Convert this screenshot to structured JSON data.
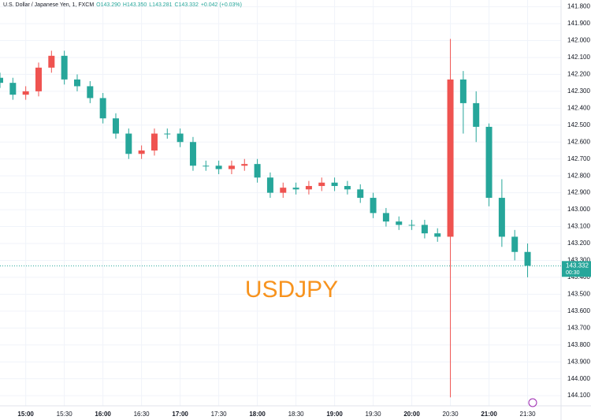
{
  "chart_data": {
    "type": "candlestick",
    "header": [
      "U.S. Dollar / Japanese Yen, 1, FXCM",
      "O143.290",
      "H143.350",
      "L143.281",
      "C143.332",
      "+0.042 (+0.03%)"
    ],
    "watermark": "USDJPY",
    "inverted": true,
    "grid": true,
    "up_color": "#26a69a",
    "down_color": "#ef5350",
    "x": [
      "14:40",
      "14:50",
      "15:00",
      "15:10",
      "15:20",
      "15:30",
      "15:40",
      "15:50",
      "16:00",
      "16:10",
      "16:20",
      "16:30",
      "16:40",
      "16:50",
      "17:00",
      "17:10",
      "17:20",
      "17:30",
      "17:40",
      "17:50",
      "18:00",
      "18:10",
      "18:20",
      "18:30",
      "18:40",
      "18:50",
      "19:00",
      "19:10",
      "19:20",
      "19:30",
      "19:40",
      "19:50",
      "20:00",
      "20:10",
      "20:20",
      "20:30",
      "20:40",
      "20:50",
      "21:00",
      "21:10",
      "21:20",
      "21:30"
    ],
    "open": [
      142.22,
      142.25,
      142.32,
      142.3,
      142.16,
      142.09,
      142.23,
      142.27,
      142.34,
      142.46,
      142.55,
      142.67,
      142.65,
      142.55,
      142.55,
      142.6,
      142.74,
      142.74,
      142.76,
      142.74,
      142.73,
      142.81,
      142.9,
      142.87,
      142.88,
      142.86,
      142.84,
      142.86,
      142.88,
      142.93,
      143.02,
      143.07,
      143.09,
      143.09,
      143.14,
      143.16,
      142.23,
      142.37,
      142.51,
      142.93,
      143.16,
      143.25
    ],
    "high": [
      142.28,
      142.35,
      142.35,
      142.33,
      142.19,
      142.26,
      142.3,
      142.37,
      142.49,
      142.58,
      142.7,
      142.7,
      142.68,
      142.58,
      142.63,
      142.77,
      142.77,
      142.79,
      142.79,
      142.77,
      142.84,
      142.93,
      142.93,
      142.91,
      142.91,
      142.89,
      142.89,
      142.91,
      142.96,
      143.05,
      143.1,
      143.12,
      143.12,
      143.17,
      143.19,
      144.11,
      142.55,
      142.6,
      142.98,
      143.22,
      143.3,
      143.4
    ],
    "low": [
      142.19,
      142.22,
      142.27,
      142.13,
      142.06,
      142.06,
      142.2,
      142.24,
      142.31,
      142.43,
      142.52,
      142.62,
      142.52,
      142.52,
      142.52,
      142.57,
      142.71,
      142.71,
      142.71,
      142.7,
      142.7,
      142.78,
      142.84,
      142.84,
      142.83,
      142.81,
      142.81,
      142.83,
      142.85,
      142.9,
      142.99,
      143.04,
      143.06,
      143.06,
      143.11,
      141.99,
      142.18,
      142.3,
      142.49,
      142.82,
      143.12,
      143.2
    ],
    "close": [
      142.25,
      142.32,
      142.3,
      142.16,
      142.09,
      142.23,
      142.27,
      142.34,
      142.46,
      142.55,
      142.67,
      142.65,
      142.55,
      142.55,
      142.6,
      142.74,
      142.74,
      142.76,
      142.74,
      142.73,
      142.81,
      142.9,
      142.87,
      142.88,
      142.86,
      142.84,
      142.86,
      142.88,
      142.93,
      143.02,
      143.07,
      143.09,
      143.09,
      143.14,
      143.16,
      142.23,
      142.37,
      142.51,
      142.93,
      143.16,
      143.25,
      143.332
    ],
    "last_price": 143.332,
    "countdown": "00:30",
    "xlim": [
      "14:40",
      "21:56"
    ],
    "xticks": [
      "15:00",
      "15:30",
      "16:00",
      "16:30",
      "17:00",
      "17:30",
      "18:00",
      "18:30",
      "19:00",
      "19:30",
      "20:00",
      "20:30",
      "21:00",
      "21:30"
    ],
    "ylim": [
      141.76,
      144.16
    ],
    "yticks": [
      {
        "value": 141.8,
        "label": "141.800"
      },
      {
        "value": 141.9,
        "label": "141.900"
      },
      {
        "value": 142.0,
        "label": "142.000"
      },
      {
        "value": 142.1,
        "label": "142.100"
      },
      {
        "value": 142.2,
        "label": "142.200"
      },
      {
        "value": 142.3,
        "label": "142.300"
      },
      {
        "value": 142.4,
        "label": "142.400"
      },
      {
        "value": 142.5,
        "label": "142.500"
      },
      {
        "value": 142.6,
        "label": "142.600"
      },
      {
        "value": 142.7,
        "label": "142.700"
      },
      {
        "value": 142.8,
        "label": "142.800"
      },
      {
        "value": 142.9,
        "label": "142.900"
      },
      {
        "value": 143.0,
        "label": "143.000"
      },
      {
        "value": 143.1,
        "label": "143.100"
      },
      {
        "value": 143.2,
        "label": "143.200"
      },
      {
        "value": 143.3,
        "label": "143.300"
      },
      {
        "value": 143.4,
        "label": "143.400"
      },
      {
        "value": 143.5,
        "label": "143.500"
      },
      {
        "value": 143.6,
        "label": "143.600"
      },
      {
        "value": 143.7,
        "label": "143.700"
      },
      {
        "value": 143.8,
        "label": "143.800"
      },
      {
        "value": 143.9,
        "label": "143.900"
      },
      {
        "value": 144.0,
        "label": "144.000"
      },
      {
        "value": 144.1,
        "label": "144.100"
      }
    ]
  }
}
